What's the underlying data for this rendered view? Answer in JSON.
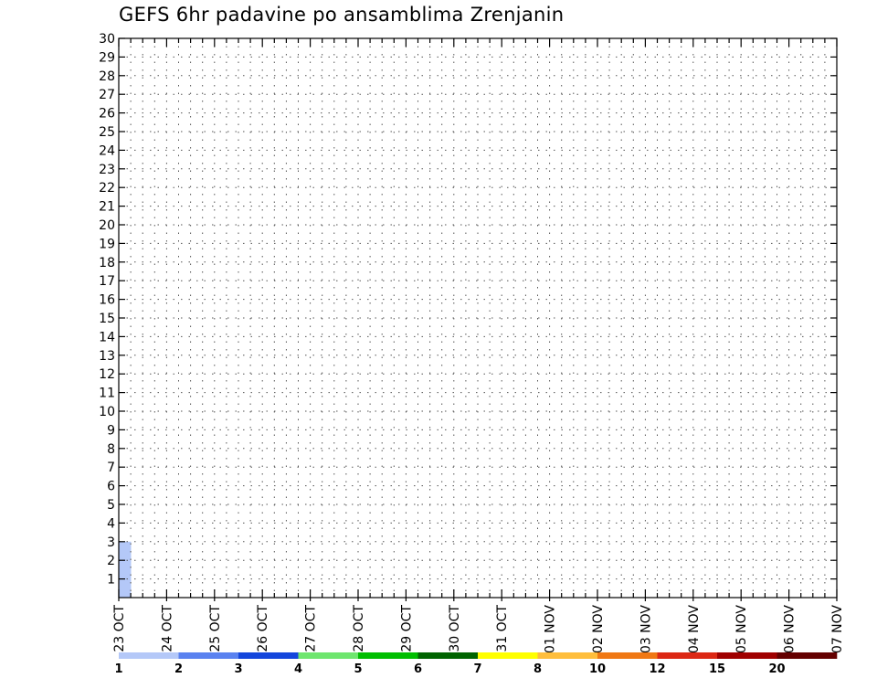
{
  "chart_data": {
    "type": "heatmap",
    "title": "GEFS 6hr padavine po ansamblima Zrenjanin",
    "xlabel": "",
    "ylabel": "",
    "y_ticks": [
      1,
      2,
      3,
      4,
      5,
      6,
      7,
      8,
      9,
      10,
      11,
      12,
      13,
      14,
      15,
      16,
      17,
      18,
      19,
      20,
      21,
      22,
      23,
      24,
      25,
      26,
      27,
      28,
      29,
      30
    ],
    "ylim": [
      0,
      30
    ],
    "x_ticks": [
      "23 OCT",
      "24 OCT",
      "25 OCT",
      "26 OCT",
      "27 OCT",
      "28 OCT",
      "29 OCT",
      "30 OCT",
      "31 OCT",
      "01 NOV",
      "02 NOV",
      "03 NOV",
      "04 NOV",
      "05 NOV",
      "06 NOV",
      "07 NOV"
    ],
    "x_unit": "6-hour step",
    "xlim": [
      0,
      60
    ],
    "grid": true,
    "legend_position": "bottom",
    "legend": {
      "labels": [
        "1",
        "2",
        "3",
        "4",
        "5",
        "6",
        "7",
        "8",
        "10",
        "12",
        "15",
        "20"
      ],
      "colors": [
        "#b4c8f8",
        "#5a82f0",
        "#1446dc",
        "#6ee66e",
        "#00be00",
        "#006400",
        "#ffff00",
        "#ffbe3c",
        "#f07814",
        "#dc2814",
        "#a00000",
        "#640000"
      ]
    },
    "cells": [
      [
        1,
        0,
        0,
        0,
        0,
        0,
        0,
        0,
        0,
        0,
        0,
        0,
        0,
        0,
        0,
        0,
        0,
        0,
        0,
        0,
        0,
        0,
        0,
        0,
        0,
        0,
        0,
        0,
        0,
        0,
        0,
        0,
        0,
        0,
        0,
        0,
        0,
        0,
        0,
        0,
        0,
        0,
        0,
        0,
        0,
        0,
        0,
        0,
        0,
        0,
        0,
        0,
        0,
        0,
        0,
        0,
        0,
        0,
        0,
        0
      ],
      [
        1,
        0,
        0,
        0,
        0,
        0,
        0,
        0,
        0,
        0,
        0,
        0,
        0,
        0,
        0,
        0,
        0,
        0,
        0,
        0,
        0,
        0,
        0,
        0,
        0,
        0,
        0,
        0,
        0,
        0,
        0,
        0,
        0,
        0,
        0,
        0,
        0,
        0,
        0,
        0,
        0,
        0,
        0,
        0,
        0,
        0,
        0,
        0,
        0,
        0,
        0,
        0,
        0,
        0,
        0,
        0,
        0,
        0,
        0,
        0
      ],
      [
        1,
        0,
        0,
        0,
        0,
        0,
        0,
        0,
        0,
        0,
        0,
        0,
        0,
        0,
        0,
        0,
        0,
        0,
        0,
        0,
        0,
        0,
        0,
        0,
        0,
        0,
        0,
        0,
        0,
        0,
        0,
        0,
        0,
        0,
        0,
        0,
        0,
        0,
        0,
        0,
        0,
        0,
        0,
        0,
        0,
        0,
        0,
        0,
        0,
        0,
        0,
        0,
        0,
        0,
        0,
        0,
        0,
        0,
        0,
        0
      ]
    ]
  }
}
